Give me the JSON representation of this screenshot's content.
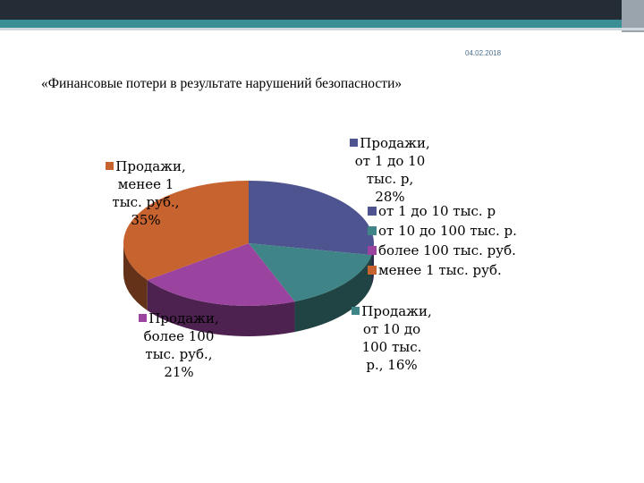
{
  "slide": {
    "date": "04.02.2018",
    "title": "«Финансовые потери в результате нарушений безопасности»"
  },
  "chart_data": {
    "type": "pie",
    "style": "3d",
    "categories": [
      "от 1 до 10 тыс. р",
      "от 10 до 100 тыс. р.",
      "более 100 тыс. руб.",
      "менее 1 тыс. руб."
    ],
    "values": [
      28,
      16,
      21,
      35
    ],
    "colors": [
      "#4e5490",
      "#3f8587",
      "#9b449f",
      "#c6632f"
    ],
    "data_labels": [
      {
        "line1": "Продажи,",
        "line2": "от 1 до 10",
        "line3": "тыс. р,",
        "line4": "28%"
      },
      {
        "line1": "Продажи,",
        "line2": "от 10 до",
        "line3": "100 тыс.",
        "line4": "р., 16%"
      },
      {
        "line1": "Продажи,",
        "line2": "более 100",
        "line3": "тыс. руб.,",
        "line4": "21%"
      },
      {
        "line1": "Продажи,",
        "line2": "менее 1",
        "line3": "тыс. руб.,",
        "line4": "35%"
      }
    ],
    "legend_position": "right"
  }
}
